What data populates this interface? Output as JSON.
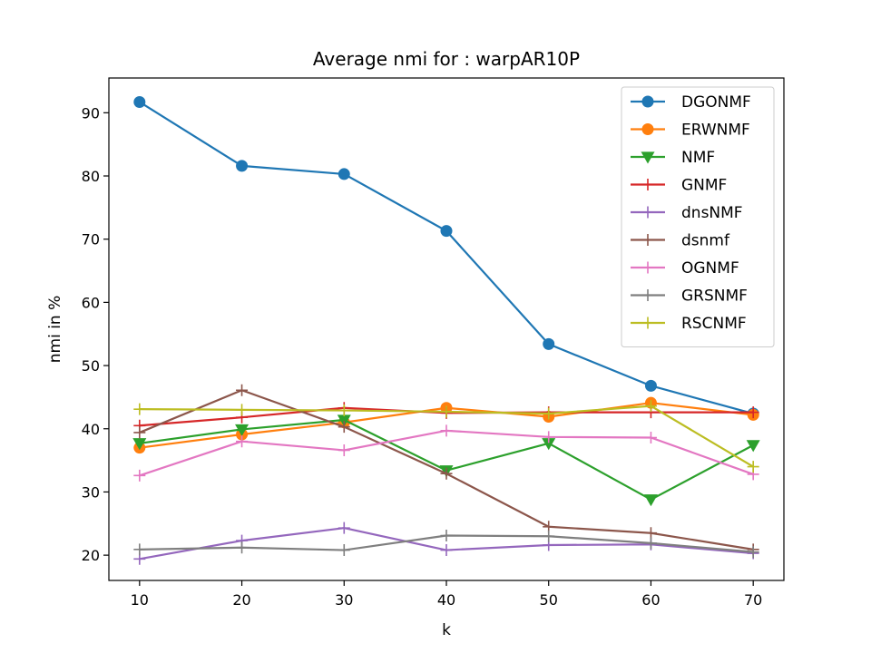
{
  "chart_data": {
    "type": "line",
    "title": "Average nmi for : warpAR10P",
    "xlabel": "k",
    "ylabel": "nmi in %",
    "x": [
      10,
      20,
      30,
      40,
      50,
      60,
      70
    ],
    "xticks": [
      "10",
      "20",
      "30",
      "40",
      "50",
      "60",
      "70"
    ],
    "yticks": [
      "20",
      "30",
      "40",
      "50",
      "60",
      "70",
      "80",
      "90"
    ],
    "xlim": [
      7,
      73
    ],
    "ylim": [
      16,
      95.5
    ],
    "grid": false,
    "legend_position": "top-right",
    "series": [
      {
        "name": "DGONMF",
        "color": "#1f77b4",
        "marker": "circle",
        "values": [
          91.7,
          81.6,
          80.3,
          71.3,
          53.4,
          46.8,
          42.4
        ]
      },
      {
        "name": "ERWNMF",
        "color": "#ff7f0e",
        "marker": "circle",
        "values": [
          37.0,
          39.1,
          41.0,
          43.3,
          41.9,
          44.1,
          42.2
        ]
      },
      {
        "name": "NMF",
        "color": "#2ca02c",
        "marker": "triangle-down",
        "values": [
          37.7,
          39.9,
          41.4,
          33.4,
          37.7,
          28.8,
          37.4
        ]
      },
      {
        "name": "GNMF",
        "color": "#d62728",
        "marker": "plus",
        "values": [
          40.5,
          41.8,
          43.3,
          42.5,
          42.6,
          42.6,
          42.6
        ]
      },
      {
        "name": "dnsNMF",
        "color": "#9467bd",
        "marker": "plus",
        "values": [
          19.4,
          22.3,
          24.3,
          20.8,
          21.6,
          21.7,
          20.3
        ]
      },
      {
        "name": "dsnmf",
        "color": "#8c564b",
        "marker": "plus",
        "values": [
          39.4,
          46.1,
          40.3,
          32.9,
          24.5,
          23.5,
          20.9
        ]
      },
      {
        "name": "OGNMF",
        "color": "#e377c2",
        "marker": "plus",
        "values": [
          32.6,
          38.0,
          36.6,
          39.7,
          38.7,
          38.6,
          32.8
        ]
      },
      {
        "name": "GRSNMF",
        "color": "#7f7f7f",
        "marker": "plus",
        "values": [
          20.9,
          21.2,
          20.8,
          23.1,
          23.0,
          21.9,
          20.5
        ]
      },
      {
        "name": "RSCNMF",
        "color": "#bcbd22",
        "marker": "plus",
        "values": [
          43.1,
          43.0,
          42.9,
          42.7,
          42.4,
          43.6,
          34.0
        ]
      }
    ]
  }
}
